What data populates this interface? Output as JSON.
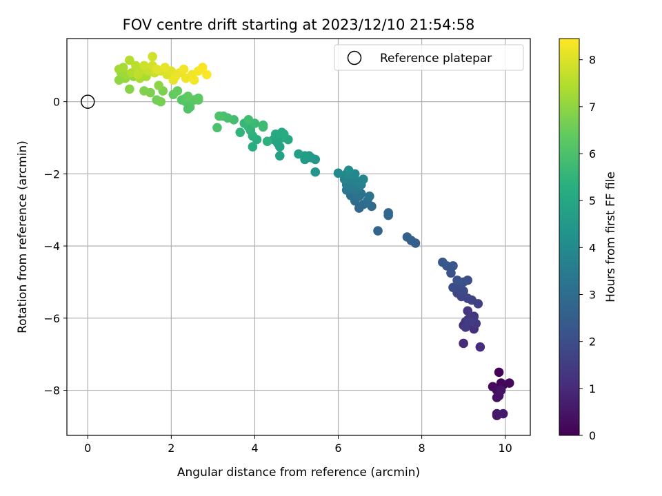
{
  "chart_data": {
    "type": "scatter",
    "title": "FOV centre drift starting at 2023/12/10 21:54:58",
    "xlabel": "Angular distance from reference (arcmin)",
    "ylabel": "Rotation from reference (arcmin)",
    "xlim": [
      -0.5,
      10.6
    ],
    "ylim": [
      -9.25,
      1.75
    ],
    "xticks": [
      0,
      2,
      4,
      6,
      8,
      10
    ],
    "yticks": [
      0,
      -2,
      -4,
      -6,
      -8
    ],
    "grid": true,
    "legend": {
      "position": "top-right",
      "entries": [
        "Reference platepar"
      ]
    },
    "reference_point": {
      "x": 0,
      "y": 0
    },
    "colorbar": {
      "label": "Hours from first FF file",
      "colormap": "viridis",
      "range": [
        0,
        8.45
      ],
      "ticks": [
        0,
        1,
        2,
        3,
        4,
        5,
        6,
        7,
        8
      ]
    },
    "points": [
      [
        9.85,
        -7.5,
        0.05
      ],
      [
        9.9,
        -7.8,
        0.1
      ],
      [
        9.95,
        -7.85,
        0.15
      ],
      [
        10.1,
        -7.8,
        0.2
      ],
      [
        9.7,
        -7.9,
        0.25
      ],
      [
        9.8,
        -8.0,
        0.3
      ],
      [
        9.85,
        -8.15,
        0.35
      ],
      [
        9.8,
        -8.2,
        0.4
      ],
      [
        9.9,
        -8.0,
        0.45
      ],
      [
        9.8,
        -8.65,
        0.5
      ],
      [
        9.8,
        -8.7,
        0.55
      ],
      [
        9.95,
        -8.65,
        0.6
      ],
      [
        9.0,
        -6.7,
        1.0
      ],
      [
        9.4,
        -6.8,
        1.05
      ],
      [
        9.25,
        -6.3,
        1.1
      ],
      [
        9.0,
        -6.2,
        1.15
      ],
      [
        9.05,
        -6.1,
        1.2
      ],
      [
        9.25,
        -5.95,
        1.25
      ],
      [
        9.1,
        -5.8,
        1.3
      ],
      [
        9.1,
        -6.05,
        1.35
      ],
      [
        9.3,
        -6.15,
        1.4
      ],
      [
        9.05,
        -6.25,
        1.45
      ],
      [
        9.15,
        -6.1,
        1.5
      ],
      [
        9.35,
        -5.6,
        1.6
      ],
      [
        9.2,
        -5.5,
        1.65
      ],
      [
        9.1,
        -5.45,
        1.7
      ],
      [
        8.95,
        -5.4,
        1.75
      ],
      [
        8.85,
        -5.3,
        1.8
      ],
      [
        9.0,
        -5.25,
        1.85
      ],
      [
        8.75,
        -5.15,
        1.9
      ],
      [
        8.9,
        -5.1,
        1.95
      ],
      [
        9.1,
        -4.95,
        2.0
      ],
      [
        9.0,
        -5.0,
        2.05
      ],
      [
        8.85,
        -4.95,
        2.1
      ],
      [
        8.7,
        -4.75,
        2.15
      ],
      [
        8.75,
        -4.55,
        2.2
      ],
      [
        8.6,
        -4.55,
        2.25
      ],
      [
        8.5,
        -4.45,
        2.3
      ],
      [
        7.85,
        -3.92,
        2.5
      ],
      [
        7.75,
        -3.85,
        2.55
      ],
      [
        7.65,
        -3.75,
        2.6
      ],
      [
        6.95,
        -3.58,
        2.7
      ],
      [
        7.2,
        -3.15,
        2.75
      ],
      [
        7.2,
        -3.08,
        2.8
      ],
      [
        6.5,
        -2.95,
        2.85
      ],
      [
        6.8,
        -2.9,
        2.9
      ],
      [
        6.6,
        -2.85,
        2.95
      ],
      [
        6.4,
        -2.75,
        3.0
      ],
      [
        6.7,
        -2.75,
        3.05
      ],
      [
        6.3,
        -2.6,
        3.1
      ],
      [
        6.5,
        -2.62,
        3.15
      ],
      [
        6.75,
        -2.62,
        3.2
      ],
      [
        6.55,
        -2.55,
        3.25
      ],
      [
        6.2,
        -2.45,
        3.3
      ],
      [
        6.4,
        -2.45,
        3.35
      ],
      [
        6.3,
        -2.4,
        3.4
      ],
      [
        6.5,
        -2.35,
        3.45
      ],
      [
        6.2,
        -2.3,
        3.5
      ],
      [
        6.35,
        -2.28,
        3.55
      ],
      [
        6.55,
        -2.3,
        3.6
      ],
      [
        6.3,
        -2.2,
        3.65
      ],
      [
        6.45,
        -2.2,
        3.7
      ],
      [
        6.15,
        -2.15,
        3.75
      ],
      [
        6.6,
        -2.15,
        3.8
      ],
      [
        6.3,
        -2.05,
        3.85
      ],
      [
        6.4,
        -2.0,
        3.9
      ],
      [
        6.0,
        -1.98,
        3.95
      ],
      [
        6.2,
        -2.0,
        4.0
      ],
      [
        6.25,
        -1.9,
        4.05
      ],
      [
        5.45,
        -1.95,
        4.4
      ],
      [
        5.45,
        -1.6,
        4.45
      ],
      [
        5.35,
        -1.55,
        4.5
      ],
      [
        5.2,
        -1.6,
        4.55
      ],
      [
        5.3,
        -1.5,
        4.6
      ],
      [
        5.2,
        -1.5,
        4.65
      ],
      [
        5.05,
        -1.45,
        4.7
      ],
      [
        4.6,
        -1.5,
        4.8
      ],
      [
        4.6,
        -1.25,
        4.85
      ],
      [
        4.55,
        -1.15,
        4.9
      ],
      [
        4.45,
        -1.05,
        4.95
      ],
      [
        4.65,
        -1.0,
        5.0
      ],
      [
        4.8,
        -1.05,
        5.05
      ],
      [
        4.5,
        -0.9,
        5.1
      ],
      [
        4.65,
        -0.85,
        5.15
      ],
      [
        4.7,
        -0.9,
        5.2
      ],
      [
        3.95,
        -1.25,
        5.25
      ],
      [
        4.05,
        -1.05,
        5.3
      ],
      [
        3.95,
        -0.95,
        5.35
      ],
      [
        4.3,
        -1.1,
        5.4
      ],
      [
        3.9,
        -0.8,
        5.45
      ],
      [
        3.65,
        -0.85,
        5.5
      ],
      [
        3.85,
        -0.7,
        5.55
      ],
      [
        3.75,
        -0.6,
        5.6
      ],
      [
        4.0,
        -0.6,
        5.65
      ],
      [
        4.2,
        -0.65,
        5.7
      ],
      [
        4.2,
        -0.7,
        5.75
      ],
      [
        3.85,
        -0.5,
        5.8
      ],
      [
        3.5,
        -0.5,
        5.85
      ],
      [
        3.35,
        -0.45,
        5.9
      ],
      [
        3.25,
        -0.4,
        5.95
      ],
      [
        3.1,
        -0.72,
        6.0
      ],
      [
        3.15,
        -0.4,
        6.02
      ],
      [
        2.45,
        -0.15,
        6.1
      ],
      [
        2.4,
        -0.2,
        6.12
      ],
      [
        2.35,
        0.0,
        6.15
      ],
      [
        2.25,
        0.05,
        6.2
      ],
      [
        2.35,
        0.1,
        6.22
      ],
      [
        2.55,
        0.05,
        6.25
      ],
      [
        2.65,
        0.05,
        6.28
      ],
      [
        2.65,
        0.1,
        6.3
      ],
      [
        2.4,
        0.15,
        6.35
      ],
      [
        2.05,
        0.2,
        6.4
      ],
      [
        2.15,
        0.3,
        6.45
      ],
      [
        1.65,
        0.05,
        6.6
      ],
      [
        1.75,
        0.0,
        6.65
      ],
      [
        1.8,
        0.3,
        6.7
      ],
      [
        1.5,
        0.25,
        6.75
      ],
      [
        1.35,
        0.3,
        6.8
      ],
      [
        1.0,
        0.35,
        6.9
      ],
      [
        1.7,
        0.45,
        6.95
      ],
      [
        0.75,
        0.6,
        7.0
      ],
      [
        0.9,
        0.65,
        7.05
      ],
      [
        1.1,
        0.7,
        7.1
      ],
      [
        0.8,
        0.8,
        7.15
      ],
      [
        0.95,
        0.75,
        7.2
      ],
      [
        0.75,
        0.9,
        7.25
      ],
      [
        0.85,
        0.95,
        7.3
      ],
      [
        1.25,
        0.65,
        7.35
      ],
      [
        1.4,
        0.7,
        7.4
      ],
      [
        1.05,
        0.8,
        7.45
      ],
      [
        1.0,
        1.15,
        7.5
      ],
      [
        1.15,
        1.0,
        7.55
      ],
      [
        1.3,
        0.9,
        7.6
      ],
      [
        1.2,
        0.75,
        7.65
      ],
      [
        1.45,
        0.85,
        7.7
      ],
      [
        1.6,
        0.8,
        7.75
      ],
      [
        1.35,
        1.0,
        7.8
      ],
      [
        1.55,
        1.25,
        7.85
      ],
      [
        1.55,
        1.0,
        7.9
      ],
      [
        1.75,
        0.85,
        7.95
      ],
      [
        1.9,
        0.75,
        8.0
      ],
      [
        1.65,
        0.9,
        8.05
      ],
      [
        2.0,
        0.85,
        8.1
      ],
      [
        1.85,
        0.95,
        8.12
      ],
      [
        2.05,
        0.6,
        8.15
      ],
      [
        2.2,
        0.8,
        8.2
      ],
      [
        2.1,
        0.7,
        8.22
      ],
      [
        2.35,
        0.65,
        8.25
      ],
      [
        2.3,
        0.9,
        8.28
      ],
      [
        2.5,
        0.75,
        8.3
      ],
      [
        2.55,
        0.6,
        8.32
      ],
      [
        2.65,
        0.85,
        8.35
      ],
      [
        2.75,
        0.95,
        8.38
      ],
      [
        2.85,
        0.75,
        8.42
      ]
    ]
  }
}
